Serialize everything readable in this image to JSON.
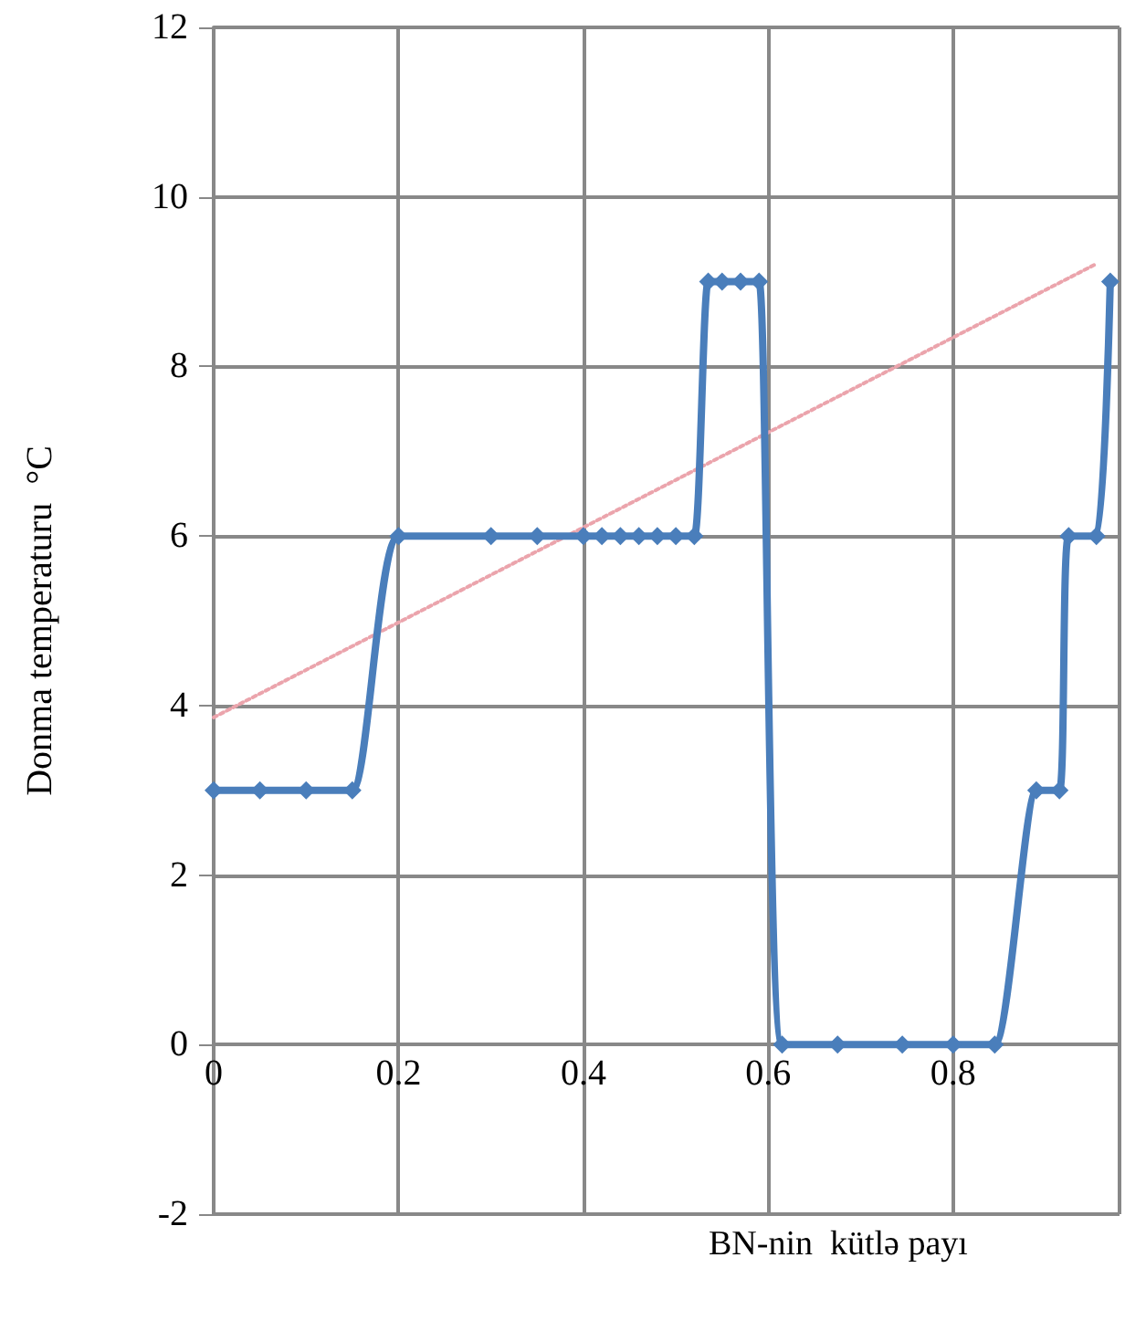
{
  "chart_data": {
    "type": "line",
    "ylabel": "Donma temperaturu  °C",
    "xlabel": "BN-nin  kütlə payı",
    "xlim": [
      0,
      0.98
    ],
    "xticks": [
      0,
      0.2,
      0.4,
      0.6,
      0.8
    ],
    "ylim": [
      -2,
      12
    ],
    "yticks": [
      -2,
      0,
      2,
      4,
      6,
      8,
      10,
      12
    ],
    "grid": true,
    "series": [
      {
        "color": "#4a7ebb",
        "marker": "diamond",
        "line_style": "solid",
        "x": [
          0,
          0.05,
          0.1,
          0.15,
          0.2,
          0.3,
          0.35,
          0.4,
          0.42,
          0.44,
          0.46,
          0.48,
          0.5,
          0.52,
          0.535,
          0.55,
          0.57,
          0.59,
          0.615,
          0.675,
          0.745,
          0.8,
          0.845,
          0.89,
          0.915,
          0.925,
          0.955,
          0.97
        ],
        "values": [
          3,
          3,
          3,
          3,
          6,
          6,
          6,
          6,
          6,
          6,
          6,
          6,
          6,
          6,
          9,
          9,
          9,
          9,
          0,
          0,
          0,
          0,
          0,
          3,
          3,
          6,
          6,
          9
        ]
      },
      {
        "color": "#eba4ac",
        "marker": "none",
        "line_style": "dotted",
        "x": [
          0,
          0.953
        ],
        "values": [
          3.86,
          9.2
        ]
      }
    ]
  }
}
